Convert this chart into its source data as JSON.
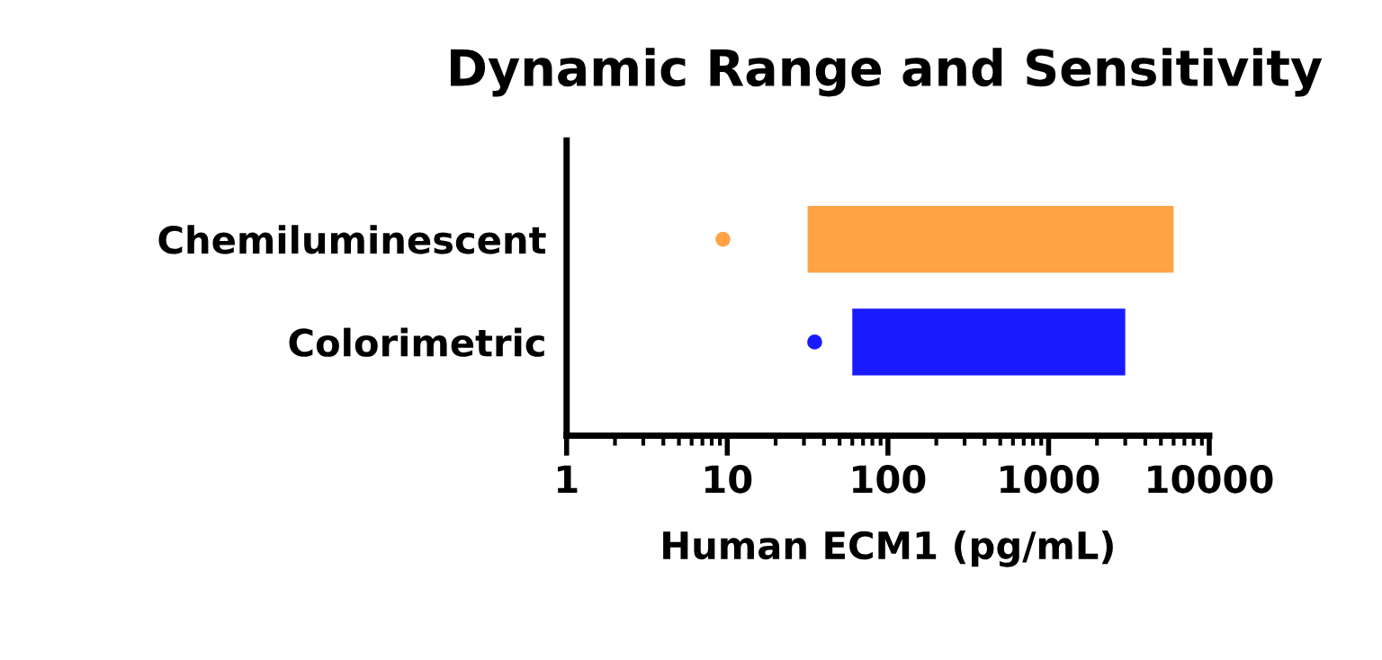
{
  "chart_data": {
    "type": "bar",
    "orientation": "horizontal",
    "title": "Dynamic Range and Sensitivity",
    "xlabel": "Human ECM1 (pg/mL)",
    "categories": [
      "Chemiluminescent",
      "Colorimetric"
    ],
    "log": "x",
    "xlim": [
      1,
      10000
    ],
    "xticks": [
      1,
      10,
      100,
      1000,
      10000
    ],
    "grid": false,
    "legend": false,
    "series": [
      {
        "colors": [
          "#ffa345",
          "#1a1aff"
        ],
        "base": [
          31.6,
          60
        ],
        "values": [
          5968,
          2940
        ]
      },
      {
        "type": "scatter",
        "colors": [
          "#ffa345",
          "#1a1aff"
        ],
        "values": [
          9.4,
          35
        ],
        "marker": "circle"
      }
    ]
  }
}
